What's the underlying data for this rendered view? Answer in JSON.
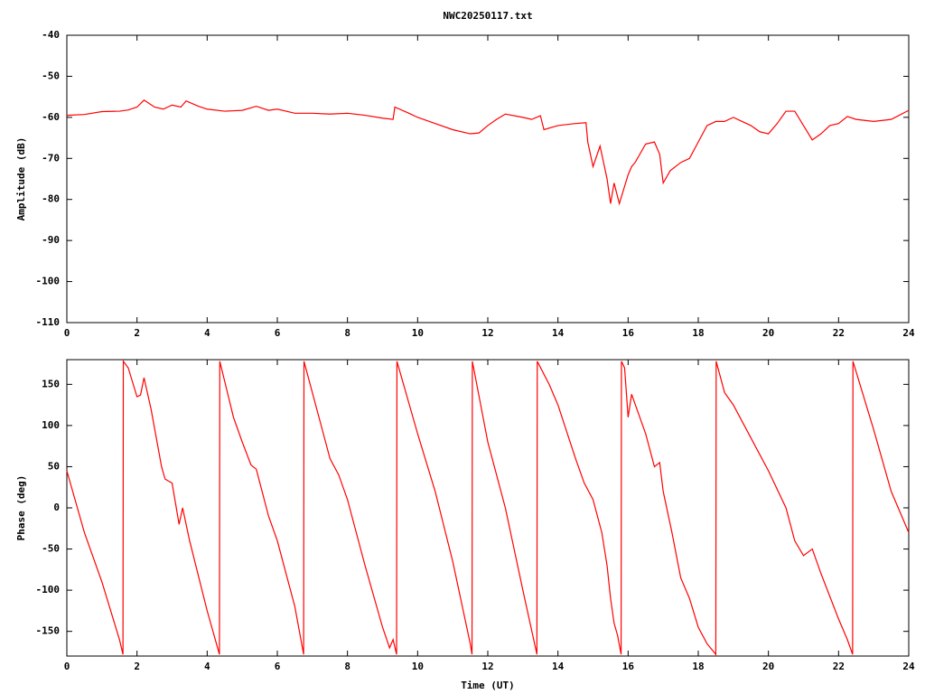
{
  "chart_data": [
    {
      "type": "line",
      "title": "NWC20250117.txt",
      "ylabel": "Amplitude (dB)",
      "color": "#ff0000",
      "xlim": [
        0,
        24
      ],
      "xticks": [
        0,
        2,
        4,
        6,
        8,
        10,
        12,
        14,
        16,
        18,
        20,
        22,
        24
      ],
      "ylim": [
        -110,
        -40
      ],
      "yticks": [
        -40,
        -50,
        -60,
        -70,
        -80,
        -90,
        -100,
        -110
      ],
      "grid": false,
      "x": [
        0,
        0.5,
        1,
        1.5,
        1.75,
        2,
        2.2,
        2.5,
        2.75,
        3,
        3.25,
        3.4,
        3.75,
        4,
        4.5,
        5,
        5.4,
        5.75,
        6,
        6.5,
        7,
        7.5,
        8,
        8.5,
        9,
        9.3,
        9.35,
        9.75,
        10,
        10.5,
        11,
        11.5,
        11.75,
        12,
        12.25,
        12.5,
        13,
        13.25,
        13.5,
        13.6,
        14,
        14.5,
        14.8,
        14.85,
        15,
        15.2,
        15.4,
        15.5,
        15.6,
        15.75,
        16,
        16.1,
        16.2,
        16.5,
        16.75,
        16.9,
        17,
        17.2,
        17.5,
        17.75,
        18,
        18.25,
        18.5,
        18.75,
        19,
        19.25,
        19.5,
        19.75,
        20,
        20.25,
        20.5,
        20.75,
        21,
        21.25,
        21.5,
        21.75,
        22,
        22.25,
        22.5,
        23,
        23.5,
        24
      ],
      "values": [
        -59.5,
        -59.3,
        -58.6,
        -58.5,
        -58.2,
        -57.5,
        -55.8,
        -57.5,
        -58,
        -57,
        -57.5,
        -56,
        -57.3,
        -58,
        -58.5,
        -58.3,
        -57.3,
        -58.3,
        -58,
        -59,
        -59,
        -59.2,
        -59,
        -59.5,
        -60.2,
        -60.5,
        -57.5,
        -59,
        -60,
        -61.5,
        -63,
        -64,
        -63.8,
        -62,
        -60.5,
        -59.2,
        -60,
        -60.5,
        -59.6,
        -63,
        -62,
        -61.5,
        -61.3,
        -66,
        -72,
        -67,
        -75,
        -81,
        -76,
        -81,
        -74,
        -72,
        -71,
        -66.5,
        -66,
        -69,
        -76,
        -73,
        -71,
        -70,
        -66,
        -62,
        -61,
        -61,
        -60,
        -61,
        -62,
        -63.5,
        -64,
        -61.5,
        -58.5,
        -58.5,
        -62,
        -65.5,
        -64,
        -62,
        -61.5,
        -59.8,
        -60.5,
        -61,
        -60.5,
        -58.3
      ]
    },
    {
      "type": "line",
      "xlabel": "Time (UT)",
      "ylabel": "Phase (deg)",
      "color": "#ff0000",
      "xlim": [
        0,
        24
      ],
      "xticks": [
        0,
        2,
        4,
        6,
        8,
        10,
        12,
        14,
        16,
        18,
        20,
        22,
        24
      ],
      "ylim": [
        -180,
        180
      ],
      "yticks": [
        150,
        100,
        50,
        0,
        -50,
        -100,
        -150
      ],
      "grid": false,
      "x": [
        0,
        0.5,
        1,
        1.5,
        1.6,
        1.61,
        1.75,
        2,
        2.1,
        2.2,
        2.4,
        2.7,
        2.8,
        3,
        3.2,
        3.3,
        3.5,
        4,
        4.35,
        4.36,
        4.75,
        5,
        5.25,
        5.4,
        5.75,
        6,
        6.5,
        6.75,
        6.76,
        7.25,
        7.5,
        7.75,
        8,
        8.5,
        9,
        9.2,
        9.3,
        9.4,
        9.41,
        10,
        10.5,
        11,
        11.5,
        11.55,
        11.56,
        12,
        12.5,
        13,
        13.4,
        13.41,
        13.75,
        14,
        14.5,
        14.75,
        15,
        15.25,
        15.4,
        15.5,
        15.6,
        15.7,
        15.8,
        15.81,
        15.9,
        16,
        16.1,
        16.25,
        16.5,
        16.75,
        16.9,
        17,
        17.25,
        17.5,
        17.75,
        18,
        18.25,
        18.5,
        18.51,
        18.75,
        19,
        19.5,
        20,
        20.5,
        20.75,
        21,
        21.25,
        21.5,
        22,
        22.25,
        22.4,
        22.41,
        23,
        23.5,
        24
      ],
      "values": [
        45,
        -30,
        -90,
        -160,
        -178,
        178,
        170,
        135,
        137,
        158,
        120,
        50,
        35,
        30,
        -20,
        0,
        -40,
        -125,
        -178,
        178,
        110,
        80,
        52,
        47,
        -10,
        -40,
        -120,
        -178,
        178,
        100,
        60,
        40,
        10,
        -70,
        -145,
        -170,
        -160,
        -178,
        178,
        90,
        20,
        -65,
        -165,
        -178,
        178,
        80,
        0,
        -100,
        -178,
        178,
        150,
        125,
        60,
        30,
        10,
        -30,
        -70,
        -110,
        -140,
        -155,
        -178,
        178,
        170,
        110,
        138,
        120,
        90,
        50,
        55,
        20,
        -30,
        -85,
        -110,
        -145,
        -165,
        -178,
        178,
        140,
        125,
        85,
        45,
        0,
        -40,
        -58,
        -50,
        -80,
        -135,
        -160,
        -178,
        178,
        95,
        20,
        -30
      ]
    }
  ]
}
